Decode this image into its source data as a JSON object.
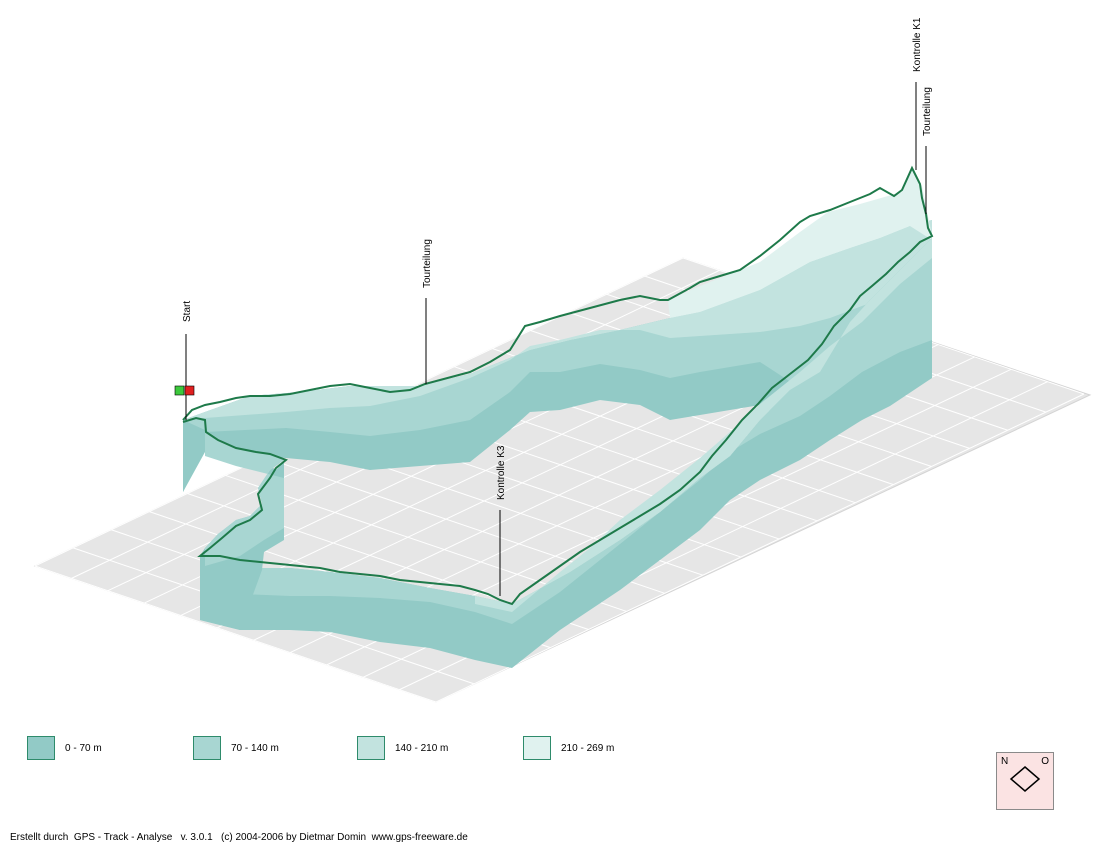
{
  "chart_data": {
    "type": "area",
    "title": "",
    "annotations": [
      {
        "text": "Start"
      },
      {
        "text": "Tourteilung"
      },
      {
        "text": "Kontrolle K3"
      },
      {
        "text": "Kontrolle K1"
      },
      {
        "text": "Tourteilung"
      }
    ],
    "legend": [
      {
        "label": "0 - 70 m",
        "color": "#92cac6"
      },
      {
        "label": "70 - 140 m",
        "color": "#a8d6d2"
      },
      {
        "label": "140 - 210 m",
        "color": "#c2e3df"
      },
      {
        "label": "210 - 269 m",
        "color": "#e0f2ef"
      }
    ],
    "track_color": "#1e7a4a",
    "grid_color": "#e2e2e2",
    "legend_placement": "bottom"
  },
  "compass": {
    "north": "N",
    "east": "O"
  },
  "footer": "Erstellt durch  GPS - Track - Analyse   v. 3.0.1   (c) 2004-2006 by Dietmar Domin  www.gps-freeware.de"
}
